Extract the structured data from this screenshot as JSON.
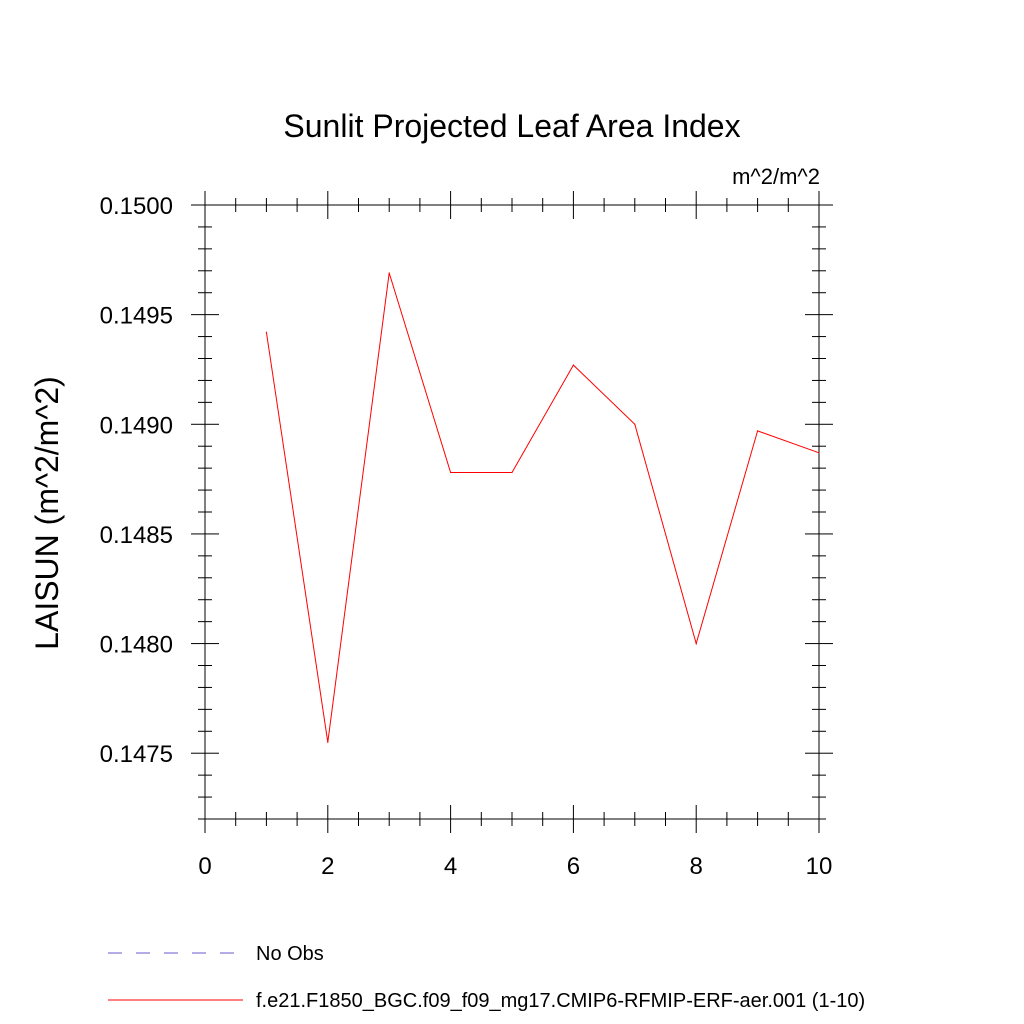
{
  "chart_data": {
    "type": "line",
    "title": "Sunlit Projected Leaf Area Index",
    "units_label": "m^2/m^2",
    "ylabel": "LAISUN  (m^2/m^2)",
    "xlabel": "",
    "xlim": [
      0,
      10
    ],
    "ylim": [
      0.1472,
      0.15
    ],
    "x_ticks": [
      0,
      2,
      4,
      6,
      8,
      10
    ],
    "y_ticks": [
      0.1475,
      0.148,
      0.1485,
      0.149,
      0.1495,
      0.15
    ],
    "y_tick_labels": [
      "0.1475",
      "0.1480",
      "0.1485",
      "0.1490",
      "0.1495",
      "0.1500"
    ],
    "x_tick_labels": [
      "0",
      "2",
      "4",
      "6",
      "8",
      "10"
    ],
    "grid": false,
    "legend_position": "bottom",
    "series": [
      {
        "name": "f.e21.F1850_BGC.f09_f09_mg17.CMIP6-RFMIP-ERF-aer.001 (1-10)",
        "color": "#ff0000",
        "x": [
          1,
          2,
          3,
          4,
          5,
          6,
          7,
          8,
          9,
          10
        ],
        "values": [
          0.14942,
          0.14755,
          0.14969,
          0.14878,
          0.14878,
          0.14927,
          0.149,
          0.148,
          0.14897,
          0.14887
        ]
      }
    ],
    "legend": [
      {
        "label": "No Obs",
        "color": "#6a5acd",
        "dash": "dashed"
      },
      {
        "label": "f.e21.F1850_BGC.f09_f09_mg17.CMIP6-RFMIP-ERF-aer.001 (1-10)",
        "color": "#ff0000",
        "dash": "solid"
      }
    ]
  }
}
